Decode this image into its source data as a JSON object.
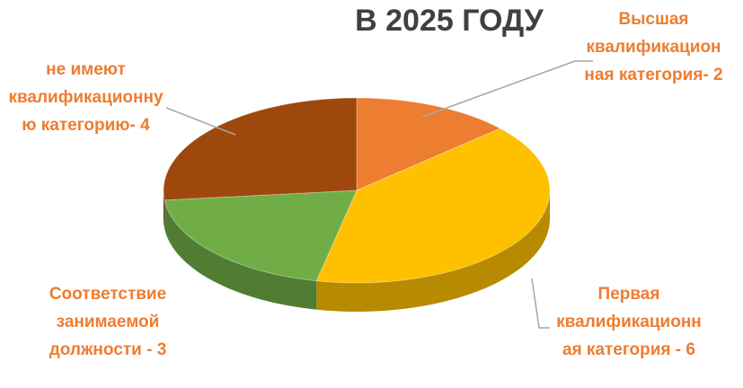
{
  "chart_data": {
    "type": "pie",
    "title": "В 2025 ГОДУ",
    "categories": [
      "Высшая квалификационная категория- 2",
      "Первая квалификационная категория - 6",
      "Соответствие занимаемой должности - 3",
      "не имеют квалификационную категорию- 4"
    ],
    "values": [
      2,
      6,
      3,
      4
    ],
    "colors": [
      "#ED7D31",
      "#FFC000",
      "#70AD47",
      "#9E480E"
    ]
  }
}
